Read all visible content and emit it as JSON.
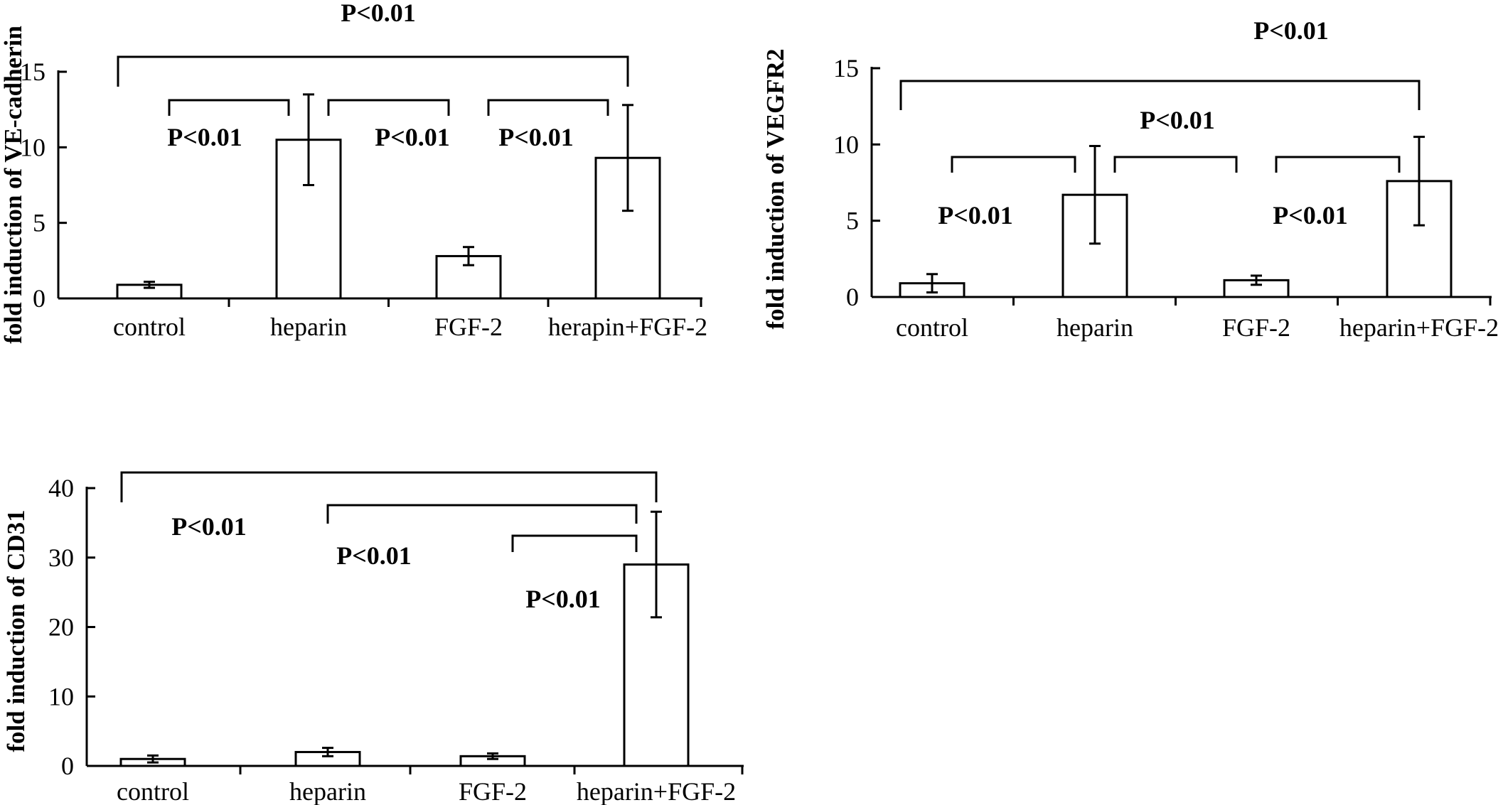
{
  "chart_data": [
    {
      "type": "bar",
      "ylabel": "fold induction of VE-cadherin",
      "categories": [
        "control",
        "heparin",
        "FGF-2",
        "herapin+FGF-2"
      ],
      "values": [
        0.9,
        10.5,
        2.8,
        9.3
      ],
      "errors": [
        0.2,
        3.0,
        0.6,
        3.5
      ],
      "ylim": [
        0,
        15
      ],
      "yticks": [
        0,
        5,
        10,
        15
      ],
      "comparisons": [
        {
          "from": 0,
          "to": 3,
          "label": "P<0.01"
        },
        {
          "from": 0,
          "to": 1,
          "label": "P<0.01"
        },
        {
          "from": 1,
          "to": 2,
          "label": "P<0.01"
        },
        {
          "from": 2,
          "to": 3,
          "label": "P<0.01"
        }
      ]
    },
    {
      "type": "bar",
      "ylabel": "fold induction of VEGFR2",
      "categories": [
        "control",
        "heparin",
        "FGF-2",
        "heparin+FGF-2"
      ],
      "values": [
        0.9,
        6.7,
        1.1,
        7.6
      ],
      "errors": [
        0.6,
        3.2,
        0.3,
        2.9
      ],
      "ylim": [
        0,
        15
      ],
      "yticks": [
        0,
        5,
        10,
        15
      ],
      "comparisons": [
        {
          "from": 0,
          "to": 3,
          "label": "P<0.01"
        },
        {
          "from": 1,
          "to": 2,
          "label": "P<0.01"
        },
        {
          "from": 0,
          "to": 1,
          "label": "P<0.01"
        },
        {
          "from": 2,
          "to": 3,
          "label": "P<0.01"
        }
      ]
    },
    {
      "type": "bar",
      "ylabel": "fold induction of CD31",
      "categories": [
        "control",
        "heparin",
        "FGF-2",
        "heparin+FGF-2"
      ],
      "values": [
        1.0,
        2.0,
        1.4,
        29.0
      ],
      "errors": [
        0.5,
        0.6,
        0.4,
        7.6
      ],
      "ylim": [
        0,
        40
      ],
      "yticks": [
        0,
        10,
        20,
        30,
        40
      ],
      "comparisons": [
        {
          "from": 0,
          "to": 3,
          "label": "P<0.01"
        },
        {
          "from": 1,
          "to": 3,
          "label": "P<0.01"
        },
        {
          "from": 2,
          "to": 3,
          "label": "P<0.01"
        }
      ]
    }
  ]
}
